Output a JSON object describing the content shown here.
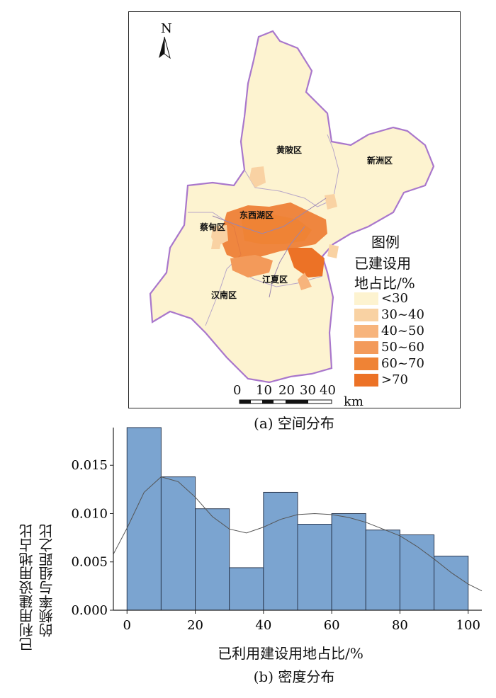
{
  "map": {
    "caption": "(a) 空间分布",
    "north_label": "N",
    "legend": {
      "title_line1": "图例",
      "title_line2": "已建设用",
      "title_line3": "地占比/%",
      "items": [
        {
          "label": "<30",
          "color": "#fdf3d0"
        },
        {
          "label": "30~40",
          "color": "#f9d2a3"
        },
        {
          "label": "40~50",
          "color": "#f7b47c"
        },
        {
          "label": "50~60",
          "color": "#f39a5a"
        },
        {
          "label": "60~70",
          "color": "#ef8335"
        },
        {
          "label": ">70",
          "color": "#ec7226"
        }
      ]
    },
    "districts": {
      "huangpi": "黄陂区",
      "xinzhou": "新洲区",
      "dongxihu": "东西湖区",
      "caidian": "蔡甸区",
      "jiangxia": "江夏区",
      "hannan": "汉南区"
    },
    "scale": {
      "labels": [
        "0",
        "10",
        "20",
        "30",
        "40"
      ],
      "unit": "km"
    }
  },
  "chart_data": {
    "type": "bar",
    "caption": "(b) 密度分布",
    "xlabel": "已利用建设用地占比/%",
    "ylabel_line1": "已利用建设用地占比",
    "ylabel_line2": "的频率与组距之比",
    "bin_edges": [
      0,
      10,
      20,
      30,
      40,
      50,
      60,
      70,
      80,
      90,
      100
    ],
    "values": [
      0.0189,
      0.0138,
      0.0105,
      0.0044,
      0.0122,
      0.0089,
      0.01,
      0.0083,
      0.0078,
      0.0056
    ],
    "kde": {
      "x": [
        -4,
        0,
        5,
        10,
        15,
        20,
        25,
        30,
        35,
        40,
        45,
        50,
        55,
        60,
        65,
        70,
        75,
        80,
        85,
        90,
        95,
        100,
        104
      ],
      "y": [
        0.0058,
        0.0085,
        0.0122,
        0.0138,
        0.0133,
        0.0117,
        0.0097,
        0.0084,
        0.008,
        0.0086,
        0.0094,
        0.0099,
        0.01,
        0.0099,
        0.0096,
        0.0091,
        0.0084,
        0.0077,
        0.0066,
        0.0053,
        0.0039,
        0.0027,
        0.002
      ]
    },
    "xlim": [
      -4,
      104
    ],
    "ylim": [
      0,
      0.0189
    ],
    "xticks": [
      0,
      20,
      40,
      60,
      80,
      100
    ],
    "xtick_labels": [
      "0",
      "20",
      "40",
      "60",
      "80",
      "100"
    ],
    "yticks": [
      0.0,
      0.005,
      0.01,
      0.015
    ],
    "ytick_labels": [
      "0.000",
      "0.005",
      "0.010",
      "0.015"
    ],
    "bar_color": "#7ba4d0",
    "bar_edge_color": "#2c3a52",
    "line_color": "#555555"
  }
}
